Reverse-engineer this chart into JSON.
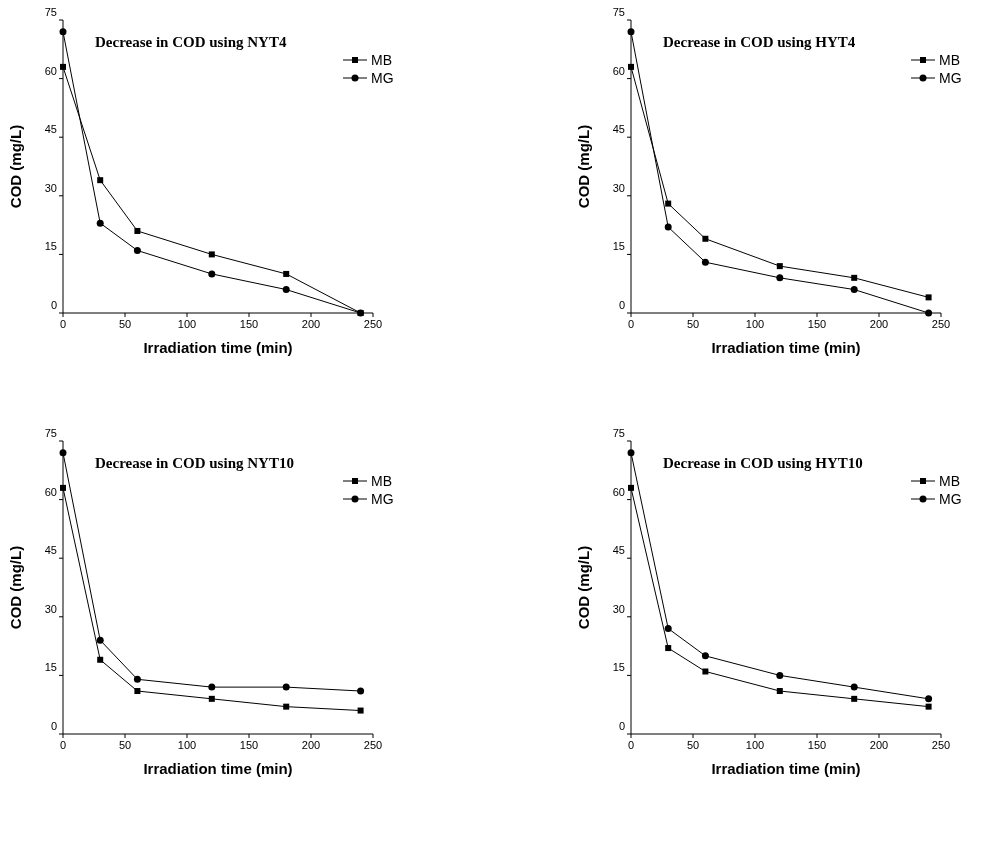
{
  "chart_data": [
    {
      "type": "line",
      "title": "Decrease in COD using NYT4",
      "xlabel": "Irradiation time (min)",
      "ylabel": "COD (mg/L)",
      "x": [
        0,
        30,
        60,
        120,
        180,
        240
      ],
      "xlim": [
        0,
        250
      ],
      "xticks": [
        0,
        50,
        100,
        150,
        200,
        250
      ],
      "ylim": [
        0,
        75
      ],
      "yticks": [
        0,
        15,
        30,
        45,
        60,
        75
      ],
      "legend": "top right",
      "grid": false,
      "series": [
        {
          "name": "MB",
          "color": "#000000",
          "marker": "square",
          "values": [
            63,
            34,
            21,
            15,
            10,
            0
          ]
        },
        {
          "name": "MG",
          "color": "#000000",
          "marker": "circle",
          "values": [
            72,
            23,
            16,
            10,
            6,
            0
          ]
        }
      ]
    },
    {
      "type": "line",
      "title": "Decrease in COD using HYT4",
      "xlabel": "Irradiation time (min)",
      "ylabel": "COD (mg/L)",
      "x": [
        0,
        30,
        60,
        120,
        180,
        240
      ],
      "xlim": [
        0,
        250
      ],
      "xticks": [
        0,
        50,
        100,
        150,
        200,
        250
      ],
      "ylim": [
        0,
        75
      ],
      "yticks": [
        0,
        15,
        30,
        45,
        60,
        75
      ],
      "legend": "top right",
      "grid": false,
      "series": [
        {
          "name": "MB",
          "color": "#000000",
          "marker": "square",
          "values": [
            63,
            28,
            19,
            12,
            9,
            4
          ]
        },
        {
          "name": "MG",
          "color": "#000000",
          "marker": "circle",
          "values": [
            72,
            22,
            13,
            9,
            6,
            0
          ]
        }
      ]
    },
    {
      "type": "line",
      "title": "Decrease in COD using NYT10",
      "xlabel": "Irradiation time (min)",
      "ylabel": "COD (mg/L)",
      "x": [
        0,
        30,
        60,
        120,
        180,
        240
      ],
      "xlim": [
        0,
        250
      ],
      "xticks": [
        0,
        50,
        100,
        150,
        200,
        250
      ],
      "ylim": [
        0,
        75
      ],
      "yticks": [
        0,
        15,
        30,
        45,
        60,
        75
      ],
      "legend": "top right",
      "grid": false,
      "series": [
        {
          "name": "MB",
          "color": "#000000",
          "marker": "square",
          "values": [
            63,
            19,
            11,
            9,
            7,
            6
          ]
        },
        {
          "name": "MG",
          "color": "#000000",
          "marker": "circle",
          "values": [
            72,
            24,
            14,
            12,
            12,
            11
          ]
        }
      ]
    },
    {
      "type": "line",
      "title": "Decrease in COD using HYT10",
      "xlabel": "Irradiation time (min)",
      "ylabel": "COD (mg/L)",
      "x": [
        0,
        30,
        60,
        120,
        180,
        240
      ],
      "xlim": [
        0,
        250
      ],
      "xticks": [
        0,
        50,
        100,
        150,
        200,
        250
      ],
      "ylim": [
        0,
        75
      ],
      "yticks": [
        0,
        15,
        30,
        45,
        60,
        75
      ],
      "legend": "top right",
      "grid": false,
      "series": [
        {
          "name": "MB",
          "color": "#000000",
          "marker": "square",
          "values": [
            63,
            22,
            16,
            11,
            9,
            7
          ]
        },
        {
          "name": "MG",
          "color": "#000000",
          "marker": "circle",
          "values": [
            72,
            27,
            20,
            15,
            12,
            9
          ]
        }
      ]
    }
  ]
}
